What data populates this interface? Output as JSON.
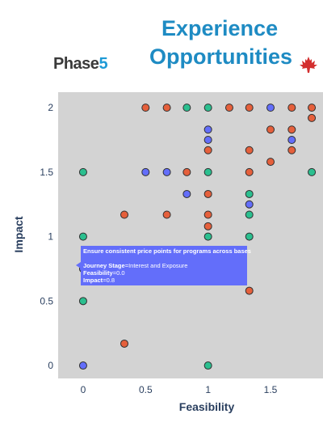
{
  "header": {
    "logo_main": "Phase",
    "logo_accent": "5",
    "title_line1": "Experience",
    "title_line2": "Opportunities",
    "maple_leaf_icon": "maple-leaf-icon"
  },
  "colors": {
    "plot_bg": "#d3d3d3",
    "green": "#2bbf8f",
    "red": "#e5603c",
    "blue": "#636efa",
    "title": "#1e8bc3"
  },
  "tooltip": {
    "title": "Ensure consistent price points for programs across bases",
    "stage_label": "Journey Stage",
    "stage_value": "Interest and Exposure",
    "feas_label": "Feasibility",
    "feas_value": "0.0",
    "impact_label": "Impact",
    "impact_value": "0.8"
  },
  "chart_data": {
    "type": "scatter",
    "xlabel": "Feasibility",
    "ylabel": "Impact",
    "xlim": [
      -0.2,
      1.92
    ],
    "ylim": [
      -0.1,
      2.12
    ],
    "x_ticks": [
      0,
      0.5,
      1,
      1.5
    ],
    "x_tick_labels": [
      "0",
      "0.5",
      "1",
      "1.5"
    ],
    "y_ticks": [
      0,
      0.5,
      1,
      1.5,
      2
    ],
    "y_tick_labels": [
      "0",
      "0.5",
      "1",
      "1.5",
      "2"
    ],
    "grid": false,
    "series": [
      {
        "color": "#2bbf8f",
        "points": [
          [
            0,
            1.5
          ],
          [
            0,
            1
          ],
          [
            0,
            0.5
          ],
          [
            0.83,
            2
          ],
          [
            1,
            2
          ],
          [
            1,
            1.5
          ],
          [
            1,
            1
          ],
          [
            1,
            0
          ],
          [
            1.33,
            1.33
          ],
          [
            1.33,
            1.17
          ],
          [
            1.33,
            1
          ],
          [
            1.83,
            1.5
          ]
        ]
      },
      {
        "color": "#e5603c",
        "points": [
          [
            0.5,
            2
          ],
          [
            0.67,
            2
          ],
          [
            1.17,
            2
          ],
          [
            1.33,
            2
          ],
          [
            1.67,
            2
          ],
          [
            1.83,
            2
          ],
          [
            1.83,
            1.92
          ],
          [
            1.5,
            1.83
          ],
          [
            1.67,
            1.83
          ],
          [
            1,
            1.67
          ],
          [
            1.33,
            1.67
          ],
          [
            1.67,
            1.67
          ],
          [
            1.5,
            1.58
          ],
          [
            0.83,
            1.5
          ],
          [
            1.33,
            1.5
          ],
          [
            1,
            1.33
          ],
          [
            0.33,
            1.17
          ],
          [
            0.67,
            1.17
          ],
          [
            1,
            1.17
          ],
          [
            1,
            1.08
          ],
          [
            1.33,
            0.58
          ],
          [
            0.33,
            0.17
          ]
        ]
      },
      {
        "color": "#636efa",
        "points": [
          [
            1,
            1.83
          ],
          [
            1,
            1.75
          ],
          [
            1.5,
            2
          ],
          [
            1.67,
            1.75
          ],
          [
            0.5,
            1.5
          ],
          [
            0.67,
            1.5
          ],
          [
            0.83,
            1.33
          ],
          [
            1.33,
            1.25
          ],
          [
            0,
            0.75
          ],
          [
            0,
            0
          ]
        ]
      }
    ]
  }
}
